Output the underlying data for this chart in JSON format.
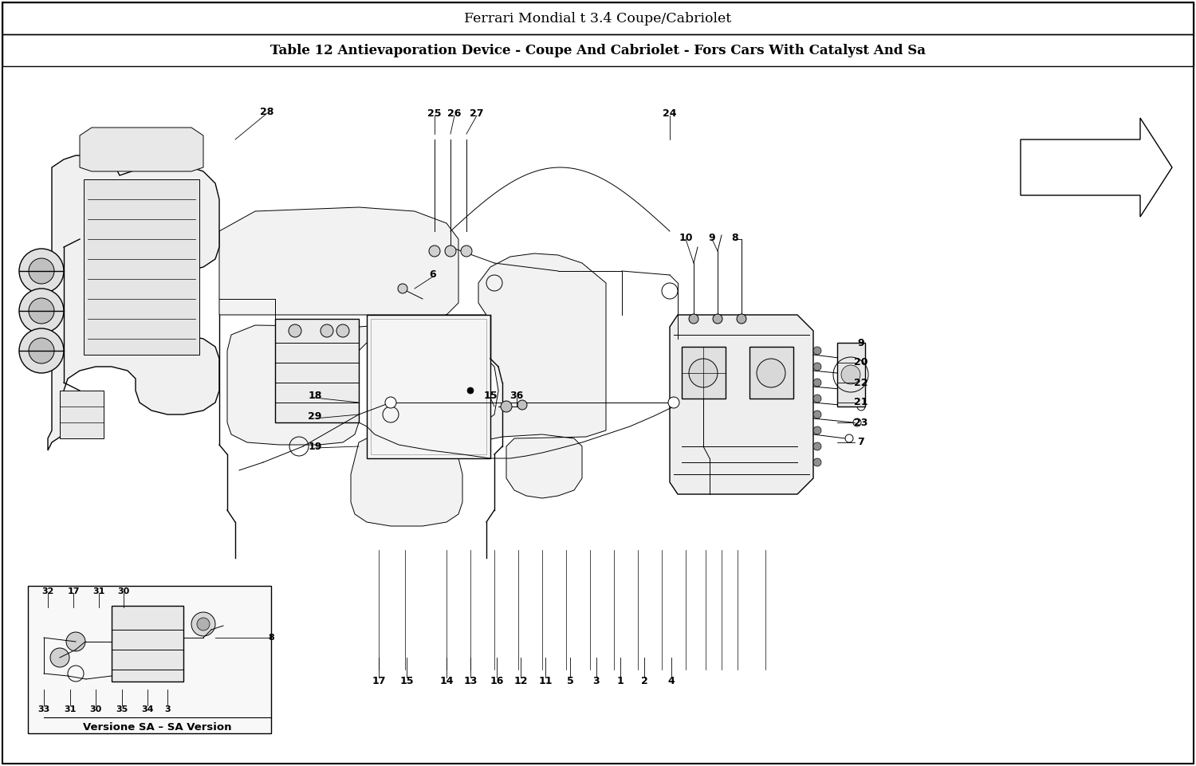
{
  "title_line1": "Ferrari Mondial t 3.4 Coupe/Cabriolet",
  "title_line2": "Table 12 Antievaporation Device - Coupe And Cabriolet - Fors Cars With Catalyst And Sa",
  "figure_width": 15.0,
  "figure_height": 9.61,
  "dpi": 100,
  "bg": "#ffffff",
  "fg": "#000000",
  "title_fontsize": 12.5,
  "subtitle_fontsize": 12,
  "label_fontsize": 9,
  "small_label_fontsize": 8
}
